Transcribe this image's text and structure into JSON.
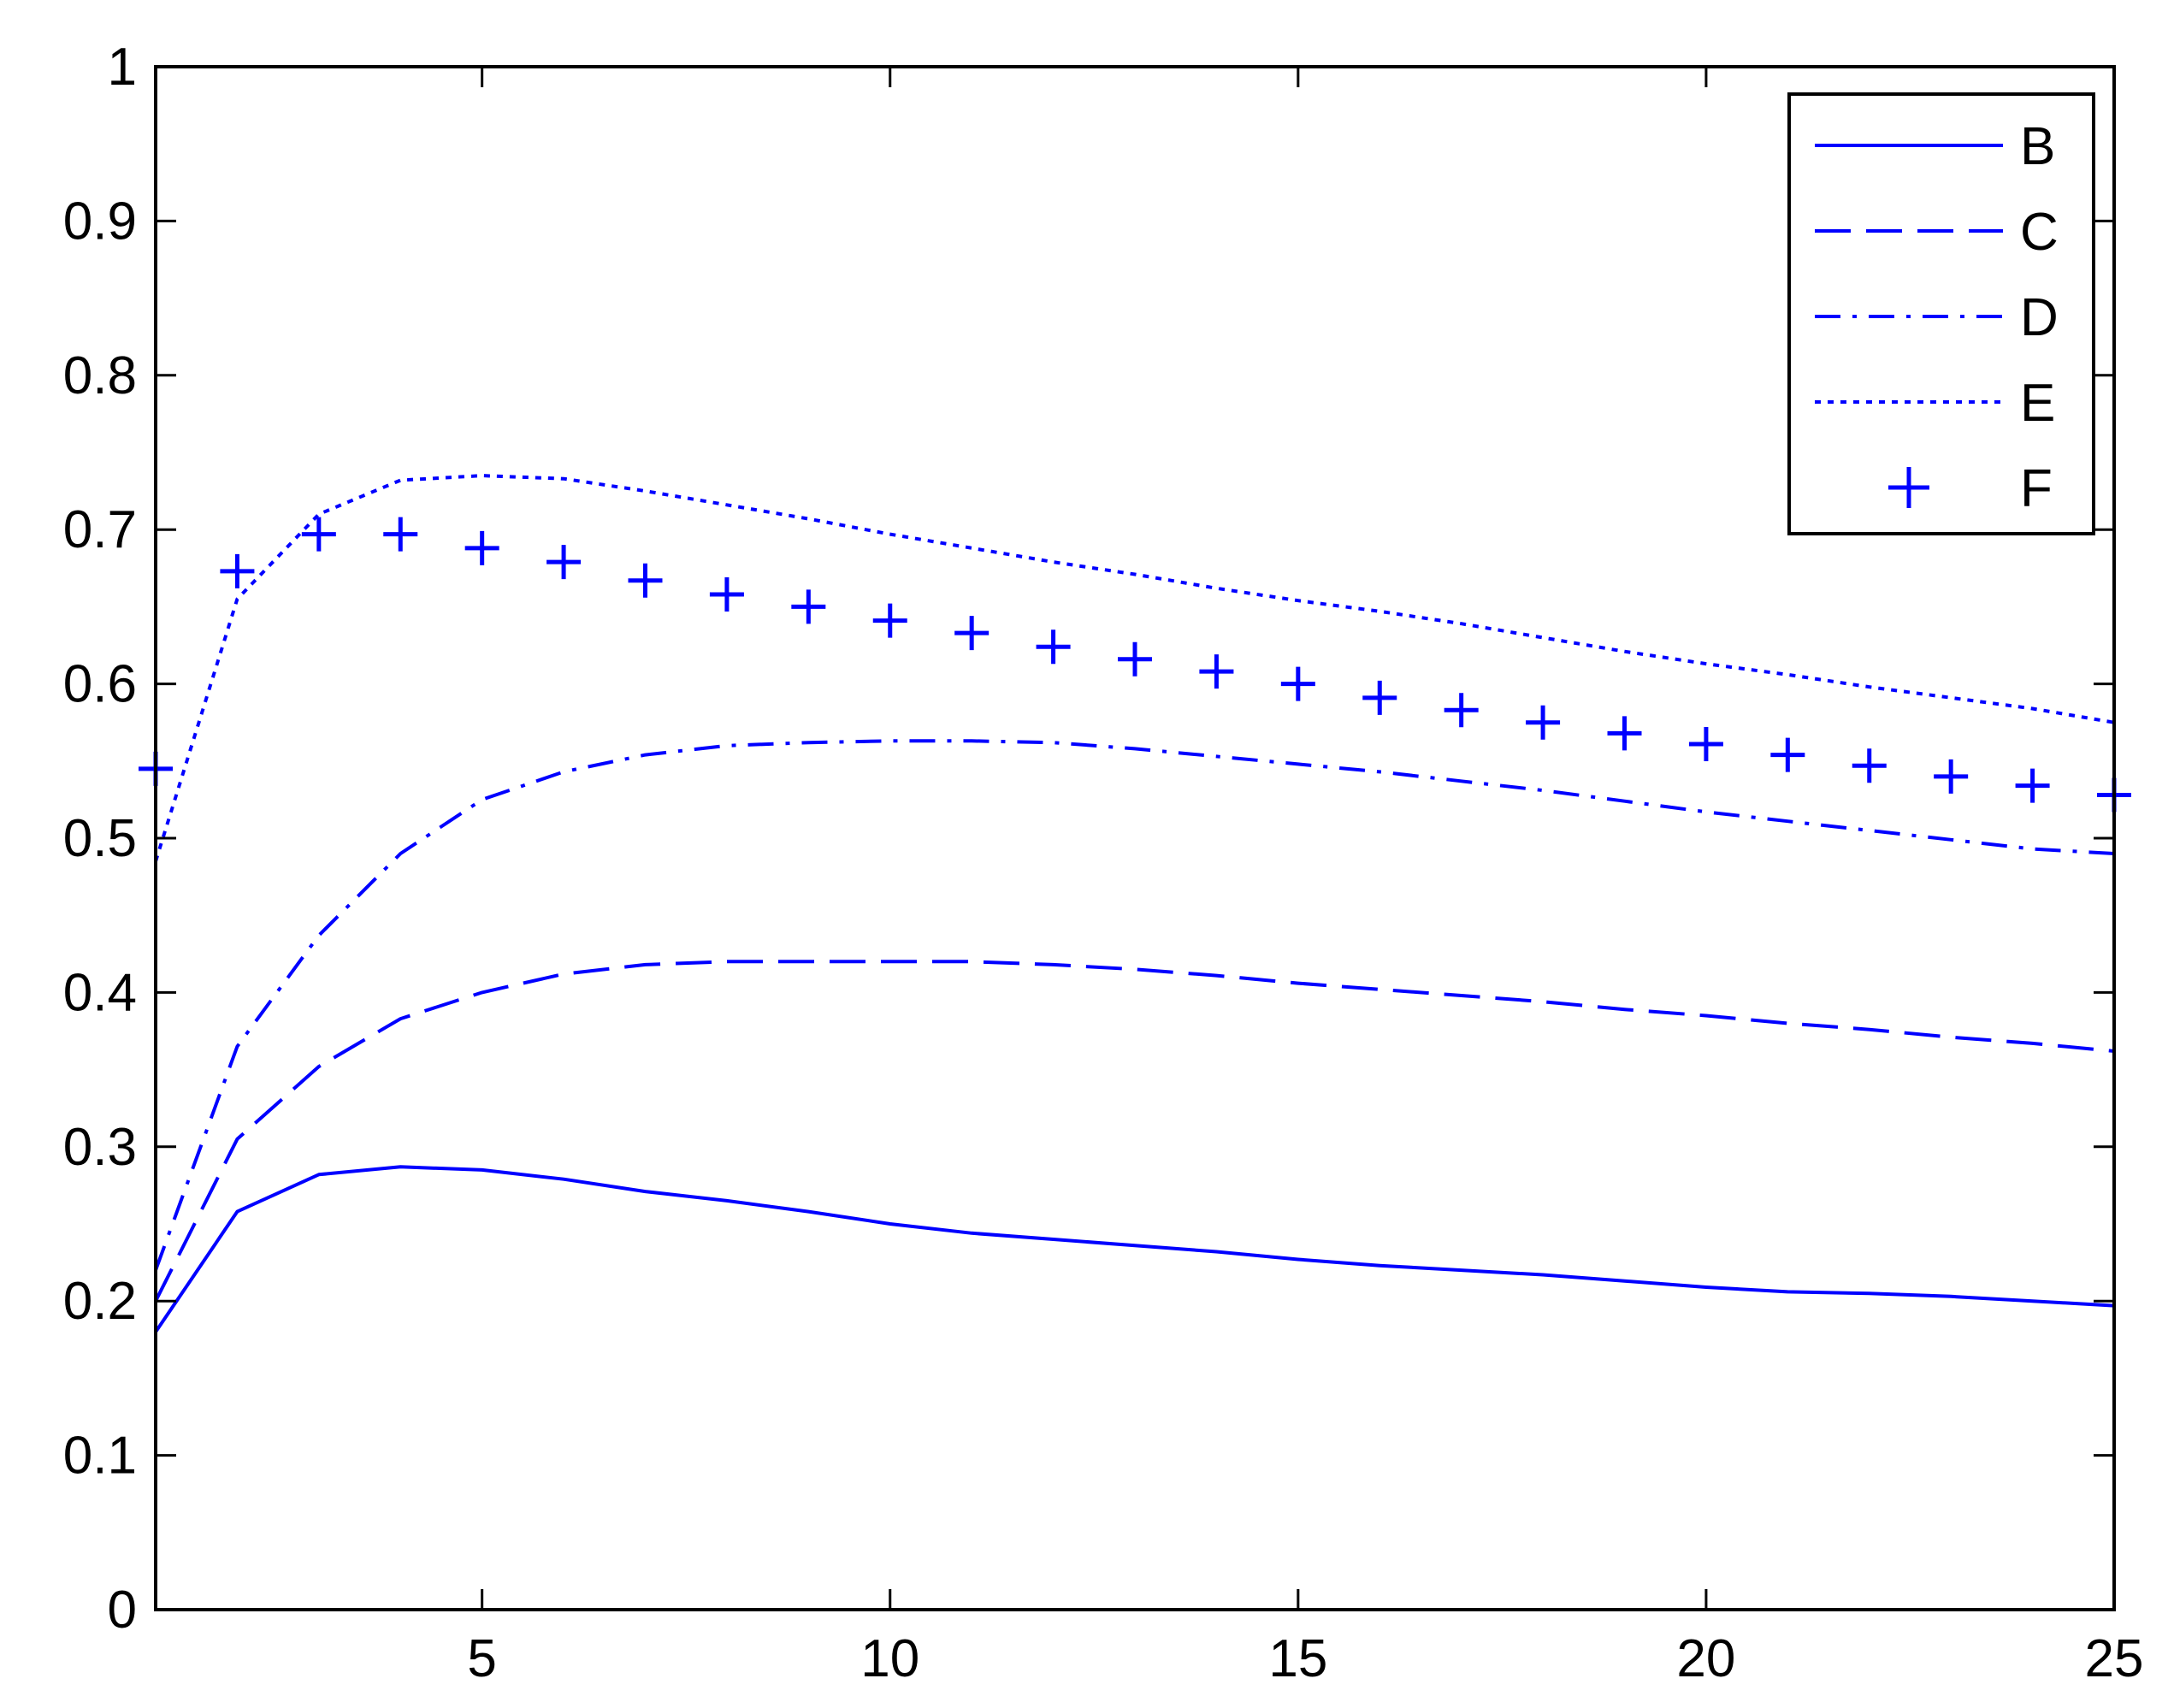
{
  "chart_data": {
    "type": "line",
    "title": "",
    "xlabel": "",
    "ylabel": "",
    "xlim": [
      1,
      25
    ],
    "ylim": [
      0,
      1
    ],
    "xticks": [
      5,
      10,
      15,
      20,
      25
    ],
    "xtick_labels": [
      "5",
      "10",
      "15",
      "20",
      "25"
    ],
    "yticks": [
      0,
      0.1,
      0.2,
      0.3,
      0.4,
      0.5,
      0.6,
      0.7,
      0.8,
      0.9,
      1
    ],
    "ytick_labels": [
      "0",
      "0.1",
      "0.2",
      "0.3",
      "0.4",
      "0.5",
      "0.6",
      "0.7",
      "0.8",
      "0.9",
      "1"
    ],
    "grid": false,
    "legend_position": "top-right",
    "line_color": "#0000ff",
    "x": [
      1,
      2,
      3,
      4,
      5,
      6,
      7,
      8,
      9,
      10,
      11,
      12,
      13,
      14,
      15,
      16,
      17,
      18,
      19,
      20,
      21,
      22,
      23,
      24,
      25
    ],
    "series": [
      {
        "name": "B",
        "style": "solid",
        "values": [
          0.18,
          0.258,
          0.282,
          0.287,
          0.285,
          0.279,
          0.271,
          0.265,
          0.258,
          0.25,
          0.244,
          0.24,
          0.236,
          0.232,
          0.227,
          0.223,
          0.22,
          0.217,
          0.213,
          0.209,
          0.206,
          0.205,
          0.203,
          0.2,
          0.197
        ]
      },
      {
        "name": "C",
        "style": "dashed",
        "values": [
          0.2,
          0.305,
          0.352,
          0.383,
          0.4,
          0.412,
          0.418,
          0.42,
          0.42,
          0.42,
          0.42,
          0.418,
          0.415,
          0.411,
          0.406,
          0.402,
          0.398,
          0.394,
          0.389,
          0.385,
          0.38,
          0.376,
          0.371,
          0.367,
          0.362
        ]
      },
      {
        "name": "D",
        "style": "dash-dot",
        "values": [
          0.22,
          0.365,
          0.437,
          0.49,
          0.525,
          0.543,
          0.554,
          0.56,
          0.562,
          0.563,
          0.563,
          0.562,
          0.558,
          0.553,
          0.548,
          0.543,
          0.537,
          0.531,
          0.524,
          0.517,
          0.511,
          0.505,
          0.499,
          0.493,
          0.49
        ]
      },
      {
        "name": "E",
        "style": "dotted",
        "values": [
          0.485,
          0.655,
          0.71,
          0.732,
          0.735,
          0.733,
          0.725,
          0.716,
          0.707,
          0.697,
          0.688,
          0.679,
          0.671,
          0.662,
          0.654,
          0.647,
          0.639,
          0.63,
          0.621,
          0.613,
          0.606,
          0.598,
          0.591,
          0.584,
          0.575
        ]
      },
      {
        "name": "F",
        "style": "plus-markers",
        "values": [
          0.545,
          0.673,
          0.697,
          0.697,
          0.688,
          0.679,
          0.667,
          0.658,
          0.65,
          0.641,
          0.633,
          0.624,
          0.616,
          0.608,
          0.6,
          0.591,
          0.583,
          0.575,
          0.568,
          0.561,
          0.554,
          0.547,
          0.54,
          0.534,
          0.528
        ]
      }
    ]
  }
}
